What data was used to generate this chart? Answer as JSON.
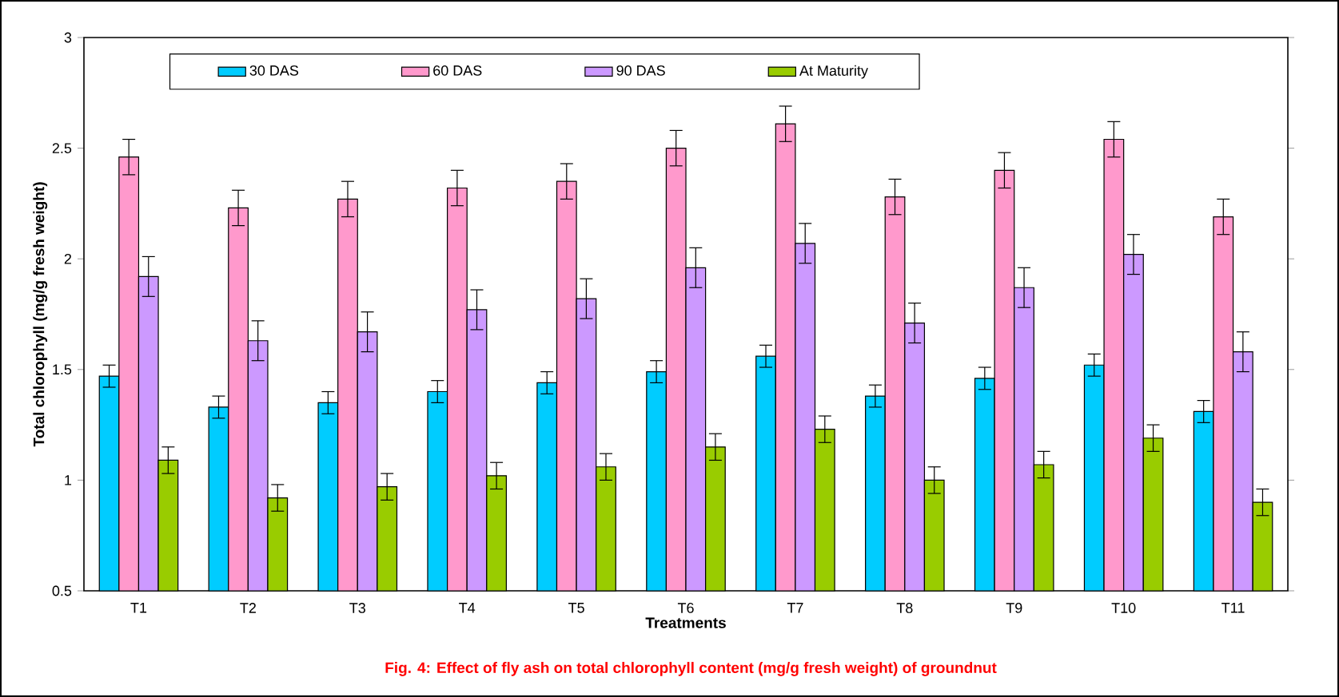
{
  "chart_data": {
    "type": "bar",
    "xlabel": "Treatments",
    "ylabel": "Total chlorophyll (mg/g fresh weight)",
    "annotations": [
      "Fig. 4: Effect of fly ash on total chlorophyll content (mg/g fresh weight) of groundnut"
    ],
    "categories": [
      "T1",
      "T2",
      "T3",
      "T4",
      "T5",
      "T6",
      "T7",
      "T8",
      "T9",
      "T10",
      "T11"
    ],
    "series": [
      {
        "name": "30 DAS",
        "color": "#00ccff",
        "values": [
          1.47,
          1.33,
          1.35,
          1.4,
          1.44,
          1.49,
          1.56,
          1.38,
          1.46,
          1.52,
          1.31
        ],
        "errors": [
          0.05,
          0.05,
          0.05,
          0.05,
          0.05,
          0.05,
          0.05,
          0.05,
          0.05,
          0.05,
          0.05
        ]
      },
      {
        "name": "60 DAS",
        "color": "#ff99cc",
        "values": [
          2.46,
          2.23,
          2.27,
          2.32,
          2.35,
          2.5,
          2.61,
          2.28,
          2.4,
          2.54,
          2.19
        ],
        "errors": [
          0.08,
          0.08,
          0.08,
          0.08,
          0.08,
          0.08,
          0.08,
          0.08,
          0.08,
          0.08,
          0.08
        ]
      },
      {
        "name": "90 DAS",
        "color": "#cc99ff",
        "values": [
          1.92,
          1.63,
          1.67,
          1.77,
          1.82,
          1.96,
          2.07,
          1.71,
          1.87,
          2.02,
          1.58
        ],
        "errors": [
          0.09,
          0.09,
          0.09,
          0.09,
          0.09,
          0.09,
          0.09,
          0.09,
          0.09,
          0.09,
          0.09
        ]
      },
      {
        "name": "At Maturity",
        "color": "#99cc00",
        "values": [
          1.09,
          0.92,
          0.97,
          1.02,
          1.06,
          1.15,
          1.23,
          1.0,
          1.07,
          1.19,
          0.9
        ],
        "errors": [
          0.06,
          0.06,
          0.06,
          0.06,
          0.06,
          0.06,
          0.06,
          0.06,
          0.06,
          0.06,
          0.06
        ]
      }
    ],
    "ylim": [
      0.5,
      3
    ],
    "yticks": [
      0.5,
      1,
      1.5,
      2,
      2.5,
      3
    ],
    "legend": "top"
  }
}
